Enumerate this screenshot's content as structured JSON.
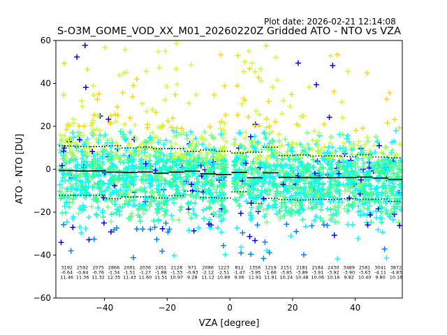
{
  "plot_date": "Plot date: 2026-02-21 12:14:08",
  "chart_data": {
    "type": "scatter",
    "title": "S-O3M_GOME_VOD_XX_M01_20260220Z Gridded ATO - NTO vs VZA",
    "xlabel": "VZA [degree]",
    "ylabel": "ATO - NTO [DU]",
    "xlim": [
      -55.5,
      55
    ],
    "ylim": [
      -60,
      60
    ],
    "xticks": [
      -40,
      -20,
      0,
      20,
      40
    ],
    "yticks": [
      -60,
      -40,
      -20,
      0,
      20,
      40,
      60
    ],
    "marker": "+",
    "marker_colors": [
      "#00ffff",
      "#29ff9f",
      "#7fff7f",
      "#c8ff37",
      "#ffd800",
      "#0080ff",
      "#0000ff"
    ],
    "bins": {
      "centers": [
        -52,
        -47,
        -42,
        -37,
        -32,
        -27,
        -22,
        -17,
        -12,
        -7,
        -2,
        3,
        8,
        13,
        18,
        23,
        28,
        33,
        38,
        43,
        48,
        53
      ],
      "counts": [
        "3192",
        "2592",
        "2075",
        "2866",
        "2001",
        "2036",
        "2451",
        "2128",
        "971",
        "2086",
        "1223",
        "812",
        "1356",
        "1219",
        "2151",
        "2181",
        "2184",
        "2430",
        "3489",
        "2581",
        "3041",
        "3872"
      ],
      "means": [
        "-0.64",
        "-0.84",
        "-0.76",
        "-1.34",
        "-1.51",
        "-1.27",
        "-1.88",
        "-1.33",
        "-0.93",
        "-2.12",
        "-2.51",
        "-1.47",
        "-3.95",
        "-1.66",
        "-3.85",
        "-3.89",
        "-3.91",
        "-3.92",
        "-3.90",
        "-3.63",
        "-4.11",
        "-4.83"
      ],
      "stddevs": [
        "11.46",
        "11.36",
        "11.32",
        "12.35",
        "11.43",
        "11.60",
        "11.51",
        "10.97",
        "9.28",
        "11.12",
        "10.89",
        "9.06",
        "11.91",
        "11.91",
        "10.24",
        "10.48",
        "10.06",
        "10.16",
        "9.82",
        "10.40",
        "9.80",
        "10.16"
      ]
    }
  }
}
